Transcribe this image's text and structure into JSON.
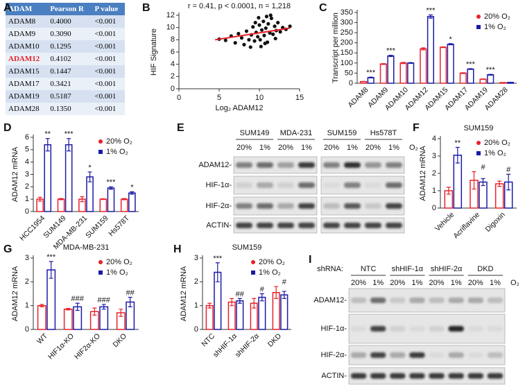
{
  "panel_labels": [
    "A",
    "B",
    "C",
    "D",
    "E",
    "F",
    "G",
    "H",
    "I"
  ],
  "table": {
    "header": [
      "ADAM",
      "Pearson R",
      "P value"
    ],
    "rows": [
      [
        "ADAM8",
        "0.4000",
        "<0.001"
      ],
      [
        "ADAM9",
        "0.3090",
        "<0.001"
      ],
      [
        "ADAM10",
        "0.1295",
        "<0.001"
      ],
      [
        "ADAM12",
        "0.4102",
        "<0.001"
      ],
      [
        "ADAM15",
        "0.1447",
        "<0.001"
      ],
      [
        "ADAM17",
        "0.3421",
        "<0.001"
      ],
      [
        "ADAM19",
        "0.5187",
        "<0.001"
      ],
      [
        "ADAM28",
        "0.1350",
        "<0.001"
      ]
    ],
    "highlight_row": 3,
    "highlight_color": "#e8202a"
  },
  "chart_data": [
    {
      "type": "scatter",
      "title": "r = 0.41, p < 0.0001, n = 1,218",
      "x_label": "Log₂ ADAM12",
      "y_label": "HIF Signature",
      "xlim": [
        0,
        15
      ],
      "xticks": [
        0,
        5,
        10,
        15
      ],
      "ylim": [
        0,
        12
      ],
      "yticks": [
        0,
        2,
        4,
        6,
        8,
        10,
        12
      ],
      "color": "#111111",
      "x": [
        5.0,
        5.8,
        6.5,
        7.0,
        7.4,
        7.8,
        8.1,
        8.4,
        8.7,
        9.0,
        9.2,
        9.4,
        9.6,
        9.8,
        10.0,
        10.1,
        10.3,
        10.5,
        10.6,
        10.8,
        11.0,
        11.1,
        11.3,
        11.5,
        11.7,
        11.9,
        12.1,
        12.3,
        12.6,
        12.9,
        13.3,
        13.8,
        8.9,
        9.9,
        10.7,
        11.4,
        10.2,
        12.0,
        9.5,
        10.9
      ],
      "y": [
        8.1,
        7.9,
        8.6,
        7.5,
        9.0,
        8.3,
        7.2,
        9.4,
        8.0,
        8.8,
        10.1,
        7.8,
        9.2,
        8.5,
        10.4,
        8.0,
        9.6,
        11.0,
        8.7,
        9.9,
        7.6,
        10.6,
        9.1,
        11.5,
        8.9,
        10.2,
        9.5,
        10.8,
        9.3,
        10.0,
        9.7,
        10.2,
        6.8,
        11.6,
        7.4,
        12.0,
        6.9,
        8.2,
        10.8,
        11.8
      ],
      "fit": {
        "x": [
          4.5,
          13.8
        ],
        "y": [
          8.0,
          9.9
        ],
        "color": "#e8202a"
      }
    },
    {
      "type": "bar",
      "y_label": "Transcript per million",
      "ylim": [
        0,
        350
      ],
      "yticks": [
        0,
        50,
        100,
        150,
        200,
        250,
        300,
        350
      ],
      "legend": "upper right",
      "categories": [
        "ADAM8",
        "ADAM9",
        "ADAM10",
        "ADAM12",
        "ADAM15",
        "ADAM17",
        "ADAM19",
        "ADAM28"
      ],
      "series": [
        {
          "name": "20% O₂",
          "color": "#e8202a",
          "values": [
            8,
            95,
            100,
            170,
            178,
            50,
            20,
            3
          ],
          "errors": [
            1,
            2,
            3,
            5,
            2,
            2,
            1,
            0.5
          ]
        },
        {
          "name": "1% O₂",
          "color": "#1a1aa6",
          "values": [
            28,
            135,
            100,
            330,
            193,
            70,
            42,
            4
          ],
          "errors": [
            2,
            3,
            2,
            8,
            3,
            2,
            2,
            0.5
          ]
        }
      ],
      "annotations": [
        "***",
        "***",
        null,
        "***",
        "*",
        "***",
        "***",
        null
      ]
    },
    {
      "type": "bar",
      "y_label": "ADAM12 mRNA",
      "ylim": [
        0,
        6
      ],
      "yticks": [
        0,
        1,
        2,
        3,
        4,
        5,
        6
      ],
      "legend": "upper right",
      "categories": [
        "HCC1954",
        "SUM149",
        "MDA-MB-231",
        "SUM159",
        "Hs578T"
      ],
      "series": [
        {
          "name": "20% O₂",
          "color": "#e8202a",
          "values": [
            1.0,
            1.0,
            1.0,
            1.0,
            1.0
          ],
          "errors": [
            0.15,
            0.05,
            0.2,
            0.03,
            0.05
          ]
        },
        {
          "name": "1% O₂",
          "color": "#1a1aa6",
          "values": [
            5.4,
            5.4,
            2.8,
            1.9,
            1.5
          ],
          "errors": [
            0.5,
            0.5,
            0.4,
            0.1,
            0.1
          ]
        }
      ],
      "annotations": [
        "**",
        "***",
        "*",
        "***",
        "*"
      ]
    },
    {
      "type": "bar",
      "title": "SUM159",
      "y_label": "ADAM12 mRNA",
      "ylim": [
        0,
        4
      ],
      "yticks": [
        0,
        1,
        2,
        3,
        4
      ],
      "legend": "upper right",
      "categories": [
        "Vehicle",
        "Acriflavine",
        "Digoxin"
      ],
      "series": [
        {
          "name": "20% O₂",
          "color": "#e8202a",
          "values": [
            1.0,
            1.6,
            1.4
          ],
          "errors": [
            0.2,
            0.5,
            0.15
          ]
        },
        {
          "name": "1% O₂",
          "color": "#1a1aa6",
          "values": [
            3.05,
            1.5,
            1.5
          ],
          "errors": [
            0.45,
            0.2,
            0.45
          ]
        }
      ],
      "annotations": [
        "**",
        "#",
        "#"
      ]
    },
    {
      "type": "bar",
      "title": "MDA-MB-231",
      "y_label": "ADAM12 mRNA",
      "ylim": [
        0,
        3
      ],
      "yticks": [
        0,
        1,
        2,
        3
      ],
      "legend": "upper right",
      "categories": [
        "WT",
        "HIF1α-KO",
        "HIF2α-KO",
        "DKO"
      ],
      "series": [
        {
          "name": "20% O₂",
          "color": "#e8202a",
          "values": [
            1.0,
            0.85,
            0.75,
            0.7
          ],
          "errors": [
            0.05,
            0.03,
            0.15,
            0.15
          ]
        },
        {
          "name": "1% O₂",
          "color": "#1a1aa6",
          "values": [
            2.5,
            0.95,
            0.95,
            1.15
          ],
          "errors": [
            0.35,
            0.15,
            0.1,
            0.2
          ]
        }
      ],
      "annotations": [
        "***",
        "###",
        "###",
        "##"
      ]
    },
    {
      "type": "bar",
      "title": "SUM159",
      "y_label": "ADAM12 mRNA",
      "ylim": [
        0,
        3
      ],
      "yticks": [
        0,
        1,
        2,
        3
      ],
      "legend": "upper right",
      "categories": [
        "NTC",
        "shHIF-1α",
        "shHIF-2α",
        "DKD"
      ],
      "series": [
        {
          "name": "20% O₂",
          "color": "#e8202a",
          "values": [
            1.0,
            1.15,
            1.1,
            1.55
          ],
          "errors": [
            0.1,
            0.15,
            0.2,
            0.25
          ]
        },
        {
          "name": "1% O₂",
          "color": "#1a1aa6",
          "values": [
            2.4,
            1.2,
            1.35,
            1.45
          ],
          "errors": [
            0.4,
            0.1,
            0.15,
            0.15
          ]
        }
      ],
      "annotations": [
        "***",
        "##",
        "#",
        "#"
      ]
    }
  ],
  "blot_e": {
    "groups": [
      "SUM149",
      "MDA-231",
      "SUM159",
      "Hs578T"
    ],
    "conditions": [
      "20%",
      "1%",
      "20%",
      "1%",
      "20%",
      "1%",
      "20%",
      "1%"
    ],
    "o2_label": "O₂",
    "proteins": [
      "ADAM12-",
      "HIF-1α-",
      "HIF-2α-",
      "ACTIN-"
    ]
  },
  "blot_i": {
    "prefix": "shRNA:",
    "groups": [
      "NTC",
      "shHIF-1α",
      "shHIF-2α",
      "DKD"
    ],
    "conditions": [
      "20%",
      "1%",
      "20%",
      "1%",
      "20%",
      "1%",
      "20%",
      "1%"
    ],
    "o2_label": "O₂",
    "proteins": [
      "ADAM12-",
      "HIF-1α-",
      "HIF-2α-",
      "ACTIN-"
    ]
  }
}
